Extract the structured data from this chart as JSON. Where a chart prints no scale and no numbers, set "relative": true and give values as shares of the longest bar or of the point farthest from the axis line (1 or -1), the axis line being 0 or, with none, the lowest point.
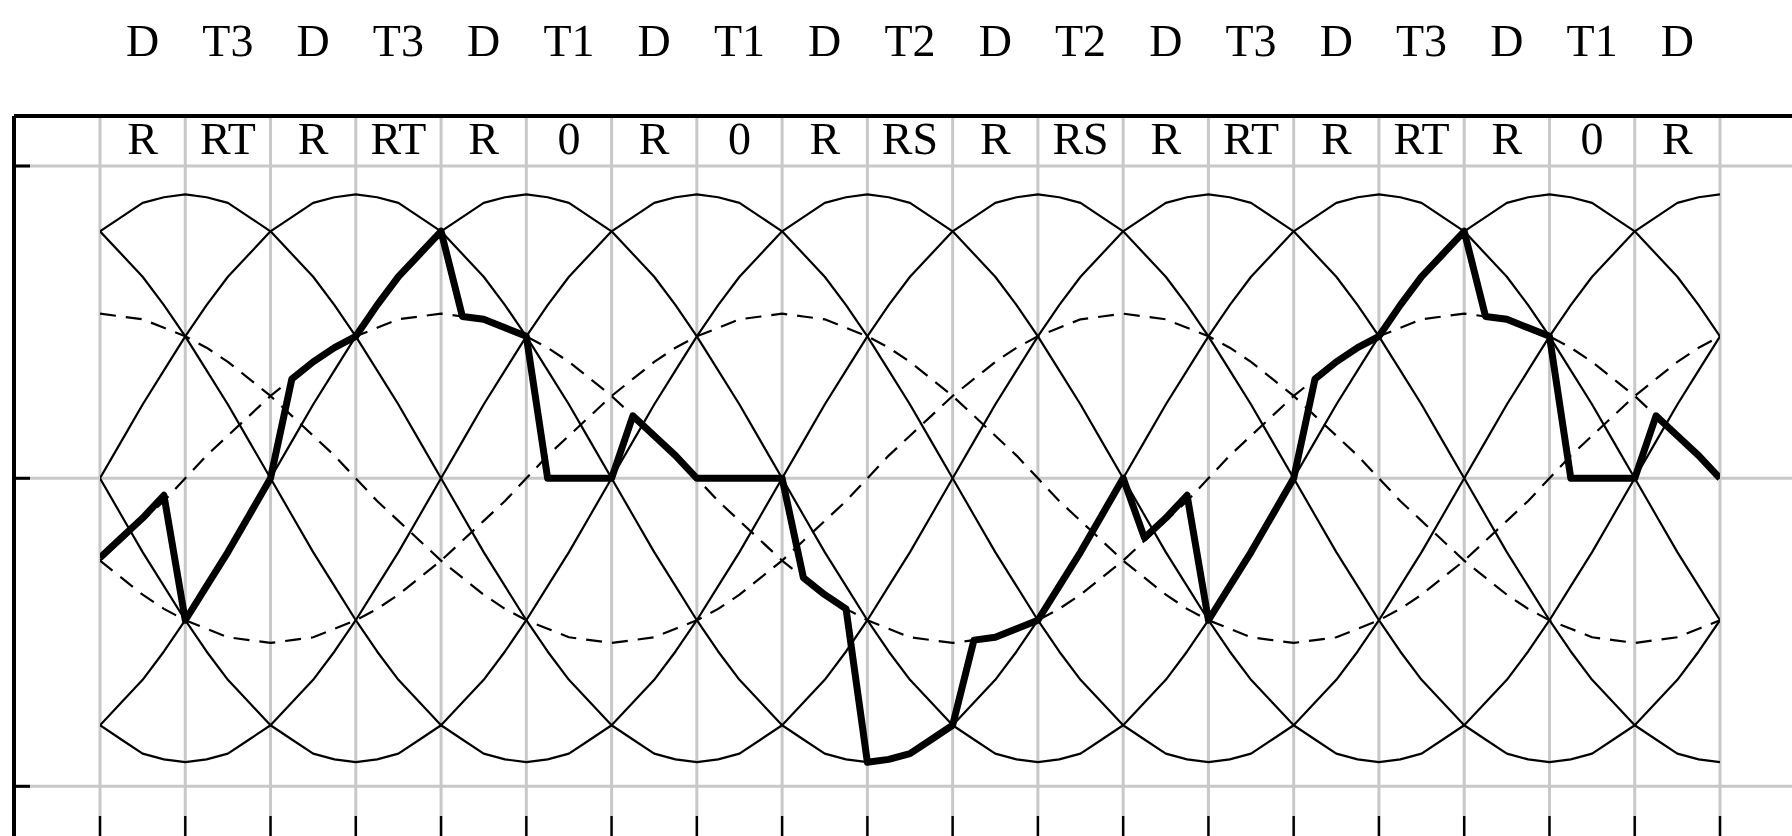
{
  "chart_data": {
    "type": "line",
    "relative": true,
    "grid": true,
    "marker": "none",
    "categories": [
      null,
      null,
      "R",
      null,
      null,
      null,
      "RT",
      null,
      null,
      null,
      "R",
      null,
      null,
      null,
      "RT",
      null,
      null,
      null,
      "R",
      null,
      null,
      null,
      "0",
      null,
      null,
      null,
      "R",
      null,
      null,
      null,
      "0",
      null,
      null,
      null,
      "R",
      null,
      null,
      null,
      "RS",
      null,
      null,
      null,
      "R",
      null,
      null,
      null,
      "RS",
      null,
      null,
      null,
      "R",
      null,
      null,
      null,
      "RT",
      null,
      null,
      null,
      "R",
      null,
      null,
      null,
      "RT",
      null,
      null,
      null,
      "R",
      null,
      null,
      null,
      "0",
      null,
      null,
      null,
      "R",
      null,
      null
    ],
    "series": [
      {
        "color": "#000000",
        "line_style": "solid",
        "values": [
          0.87,
          0.92,
          0.97,
          0.99,
          1,
          0.99,
          0.97,
          0.92,
          0.87,
          0.79,
          0.71,
          0.61,
          0.5,
          0.38,
          0.26,
          0.13,
          0,
          -0.13,
          -0.26,
          -0.38,
          -0.5,
          -0.61,
          -0.71,
          -0.79,
          -0.87,
          -0.92,
          -0.97,
          -0.99,
          -1,
          -0.99,
          -0.97,
          -0.92,
          -0.87,
          -0.79,
          -0.71,
          -0.61,
          -0.5,
          -0.38,
          -0.26,
          -0.13,
          0,
          0.13,
          0.26,
          0.38,
          0.5,
          0.61,
          0.71,
          0.79,
          0.87,
          0.92,
          0.97,
          0.99,
          1,
          0.99,
          0.97,
          0.92,
          0.87,
          0.79,
          0.71,
          0.61,
          0.5,
          0.38,
          0.26,
          0.13,
          0,
          -0.13,
          -0.26,
          -0.38,
          -0.5,
          -0.61,
          -0.71,
          -0.79,
          -0.87,
          -0.92,
          -0.97,
          -0.99,
          -1
        ]
      },
      {
        "color": "#000000",
        "line_style": "solid",
        "values": [
          0,
          0.13,
          0.26,
          0.38,
          0.5,
          0.61,
          0.71,
          0.79,
          0.87,
          0.92,
          0.97,
          0.99,
          1,
          0.99,
          0.97,
          0.92,
          0.87,
          0.79,
          0.71,
          0.61,
          0.5,
          0.38,
          0.26,
          0.13,
          0,
          -0.13,
          -0.26,
          -0.38,
          -0.5,
          -0.61,
          -0.71,
          -0.79,
          -0.87,
          -0.92,
          -0.97,
          -0.99,
          -1,
          -0.99,
          -0.97,
          -0.92,
          -0.87,
          -0.79,
          -0.71,
          -0.61,
          -0.5,
          -0.38,
          -0.26,
          -0.13,
          0,
          0.13,
          0.26,
          0.38,
          0.5,
          0.61,
          0.71,
          0.79,
          0.87,
          0.92,
          0.97,
          0.99,
          1,
          0.99,
          0.97,
          0.92,
          0.87,
          0.79,
          0.71,
          0.61,
          0.5,
          0.38,
          0.26,
          0.13,
          0,
          -0.13,
          -0.26,
          -0.38,
          -0.5
        ]
      },
      {
        "color": "#000000",
        "line_style": "solid",
        "values": [
          -0.87,
          -0.79,
          -0.71,
          -0.61,
          -0.5,
          -0.38,
          -0.26,
          -0.13,
          0,
          0.13,
          0.26,
          0.38,
          0.5,
          0.61,
          0.71,
          0.79,
          0.87,
          0.92,
          0.97,
          0.99,
          1,
          0.99,
          0.97,
          0.92,
          0.87,
          0.79,
          0.71,
          0.61,
          0.5,
          0.38,
          0.26,
          0.13,
          0,
          -0.13,
          -0.26,
          -0.38,
          -0.5,
          -0.61,
          -0.71,
          -0.79,
          -0.87,
          -0.92,
          -0.97,
          -0.99,
          -1,
          -0.99,
          -0.97,
          -0.92,
          -0.87,
          -0.79,
          -0.71,
          -0.61,
          -0.5,
          -0.38,
          -0.26,
          -0.13,
          0,
          0.13,
          0.26,
          0.38,
          0.5,
          0.61,
          0.71,
          0.79,
          0.87,
          0.92,
          0.97,
          0.99,
          1,
          0.99,
          0.97,
          0.92,
          0.87,
          0.79,
          0.71,
          0.61,
          0.5
        ]
      },
      {
        "color": "#000000",
        "line_style": "solid",
        "values": [
          -0.87,
          -0.92,
          -0.97,
          -0.99,
          -1,
          -0.99,
          -0.97,
          -0.92,
          -0.87,
          -0.79,
          -0.71,
          -0.61,
          -0.5,
          -0.38,
          -0.26,
          -0.13,
          0,
          0.13,
          0.26,
          0.38,
          0.5,
          0.61,
          0.71,
          0.79,
          0.87,
          0.92,
          0.97,
          0.99,
          1,
          0.99,
          0.97,
          0.92,
          0.87,
          0.79,
          0.71,
          0.61,
          0.5,
          0.38,
          0.26,
          0.13,
          0,
          -0.13,
          -0.26,
          -0.38,
          -0.5,
          -0.61,
          -0.71,
          -0.79,
          -0.87,
          -0.92,
          -0.97,
          -0.99,
          -1,
          -0.99,
          -0.97,
          -0.92,
          -0.87,
          -0.79,
          -0.71,
          -0.61,
          -0.5,
          -0.38,
          -0.26,
          -0.13,
          0,
          0.13,
          0.26,
          0.38,
          0.5,
          0.61,
          0.71,
          0.79,
          0.87,
          0.92,
          0.97,
          0.99,
          1
        ]
      },
      {
        "color": "#000000",
        "line_style": "solid",
        "values": [
          0,
          -0.13,
          -0.26,
          -0.38,
          -0.5,
          -0.61,
          -0.71,
          -0.79,
          -0.87,
          -0.92,
          -0.97,
          -0.99,
          -1,
          -0.99,
          -0.97,
          -0.92,
          -0.87,
          -0.79,
          -0.71,
          -0.61,
          -0.5,
          -0.38,
          -0.26,
          -0.13,
          0,
          0.13,
          0.26,
          0.38,
          0.5,
          0.61,
          0.71,
          0.79,
          0.87,
          0.92,
          0.97,
          0.99,
          1,
          0.99,
          0.97,
          0.92,
          0.87,
          0.79,
          0.71,
          0.61,
          0.5,
          0.38,
          0.26,
          0.13,
          0,
          -0.13,
          -0.26,
          -0.38,
          -0.5,
          -0.61,
          -0.71,
          -0.79,
          -0.87,
          -0.92,
          -0.97,
          -0.99,
          -1,
          -0.99,
          -0.97,
          -0.92,
          -0.87,
          -0.79,
          -0.71,
          -0.61,
          -0.5,
          -0.38,
          -0.26,
          -0.13,
          0,
          0.13,
          0.26,
          0.38,
          0.5
        ]
      },
      {
        "color": "#000000",
        "line_style": "solid",
        "values": [
          0.87,
          0.79,
          0.71,
          0.61,
          0.5,
          0.38,
          0.26,
          0.13,
          0,
          -0.13,
          -0.26,
          -0.38,
          -0.5,
          -0.61,
          -0.71,
          -0.79,
          -0.87,
          -0.92,
          -0.97,
          -0.99,
          -1,
          -0.99,
          -0.97,
          -0.92,
          -0.87,
          -0.79,
          -0.71,
          -0.61,
          -0.5,
          -0.38,
          -0.26,
          -0.13,
          0,
          0.13,
          0.26,
          0.38,
          0.5,
          0.61,
          0.71,
          0.79,
          0.87,
          0.92,
          0.97,
          0.99,
          1,
          0.99,
          0.97,
          0.92,
          0.87,
          0.79,
          0.71,
          0.61,
          0.5,
          0.38,
          0.26,
          0.13,
          0,
          -0.13,
          -0.26,
          -0.38,
          -0.5,
          -0.61,
          -0.71,
          -0.79,
          -0.87,
          -0.92,
          -0.97,
          -0.99,
          -1,
          -0.99,
          -0.97,
          -0.92,
          -0.87,
          -0.79,
          -0.71,
          -0.61,
          -0.5
        ]
      },
      {
        "color": "#000000",
        "line_style": "dashed",
        "values": [
          0.58,
          0.57,
          0.56,
          0.53,
          0.5,
          0.46,
          0.41,
          0.35,
          0.29,
          0.22,
          0.15,
          0.08,
          0,
          -0.08,
          -0.15,
          -0.22,
          -0.29,
          -0.35,
          -0.41,
          -0.46,
          -0.5,
          -0.53,
          -0.56,
          -0.57,
          -0.58,
          -0.57,
          -0.56,
          -0.53,
          -0.5,
          -0.46,
          -0.41,
          -0.35,
          -0.29,
          -0.22,
          -0.15,
          -0.08,
          0,
          0.08,
          0.15,
          0.22,
          0.29,
          0.35,
          0.41,
          0.46,
          0.5,
          0.53,
          0.56,
          0.57,
          0.58,
          0.57,
          0.56,
          0.53,
          0.5,
          0.46,
          0.41,
          0.35,
          0.29,
          0.22,
          0.15,
          0.08,
          0,
          -0.08,
          -0.15,
          -0.22,
          -0.29,
          -0.35,
          -0.41,
          -0.46,
          -0.5,
          -0.53,
          -0.56,
          -0.57,
          -0.58,
          -0.57,
          -0.56,
          -0.53,
          -0.5
        ]
      },
      {
        "color": "#000000",
        "line_style": "dashed",
        "values": [
          -0.29,
          -0.22,
          -0.15,
          -0.08,
          0,
          0.08,
          0.15,
          0.22,
          0.29,
          0.35,
          0.41,
          0.46,
          0.5,
          0.53,
          0.56,
          0.57,
          0.58,
          0.57,
          0.56,
          0.53,
          0.5,
          0.46,
          0.41,
          0.35,
          0.29,
          0.22,
          0.15,
          0.08,
          0,
          -0.08,
          -0.15,
          -0.22,
          -0.29,
          -0.35,
          -0.41,
          -0.46,
          -0.5,
          -0.53,
          -0.56,
          -0.57,
          -0.58,
          -0.57,
          -0.56,
          -0.53,
          -0.5,
          -0.46,
          -0.41,
          -0.35,
          -0.29,
          -0.22,
          -0.15,
          -0.08,
          0,
          0.08,
          0.15,
          0.22,
          0.29,
          0.35,
          0.41,
          0.46,
          0.5,
          0.53,
          0.56,
          0.57,
          0.58,
          0.57,
          0.56,
          0.53,
          0.5,
          0.46,
          0.41,
          0.35,
          0.29,
          0.22,
          0.15,
          0.08,
          0
        ]
      },
      {
        "color": "#000000",
        "line_style": "dashed",
        "values": [
          -0.29,
          -0.35,
          -0.41,
          -0.46,
          -0.5,
          -0.53,
          -0.56,
          -0.57,
          -0.58,
          -0.57,
          -0.56,
          -0.53,
          -0.5,
          -0.46,
          -0.41,
          -0.35,
          -0.29,
          -0.22,
          -0.15,
          -0.08,
          0,
          0.08,
          0.15,
          0.22,
          0.29,
          0.35,
          0.41,
          0.46,
          0.5,
          0.53,
          0.56,
          0.57,
          0.58,
          0.57,
          0.56,
          0.53,
          0.5,
          0.46,
          0.41,
          0.35,
          0.29,
          0.22,
          0.15,
          0.08,
          0,
          -0.08,
          -0.15,
          -0.22,
          -0.29,
          -0.35,
          -0.41,
          -0.46,
          -0.5,
          -0.53,
          -0.56,
          -0.57,
          -0.58,
          -0.57,
          -0.56,
          -0.53,
          -0.5,
          -0.46,
          -0.41,
          -0.35,
          -0.29,
          -0.22,
          -0.15,
          -0.08,
          0,
          0.08,
          0.15,
          0.22,
          0.29,
          0.35,
          0.41,
          0.46,
          0.5
        ]
      },
      {
        "color": "#000000",
        "line_style": "solid",
        "values": [
          -0.28,
          -0.21,
          -0.14,
          -0.06,
          -0.5,
          -0.38,
          -0.26,
          -0.13,
          0,
          0.35,
          0.41,
          0.46,
          0.5,
          0.61,
          0.71,
          0.79,
          0.87,
          0.57,
          0.56,
          0.53,
          0.5,
          0,
          0,
          0,
          0,
          0.22,
          0.15,
          0.08,
          0,
          0,
          0,
          0,
          0,
          -0.35,
          -0.41,
          -0.46,
          -1,
          -0.99,
          -0.97,
          -0.92,
          -0.87,
          -0.57,
          -0.56,
          -0.53,
          -0.5,
          -0.38,
          -0.26,
          -0.13,
          0,
          -0.21,
          -0.14,
          -0.06,
          -0.5,
          -0.38,
          -0.26,
          -0.13,
          0,
          0.35,
          0.41,
          0.46,
          0.5,
          0.61,
          0.71,
          0.79,
          0.87,
          0.57,
          0.56,
          0.53,
          0.5,
          0,
          0,
          0,
          0,
          0.22,
          0.15,
          0.08,
          0
        ]
      }
    ],
    "annotations": [
      "D",
      "T3",
      "D",
      "T3",
      "D",
      "T1",
      "D",
      "T1",
      "D",
      "T2",
      "D",
      "T2",
      "D",
      "T3",
      "D",
      "T3",
      "D",
      "T1",
      "D"
    ]
  }
}
